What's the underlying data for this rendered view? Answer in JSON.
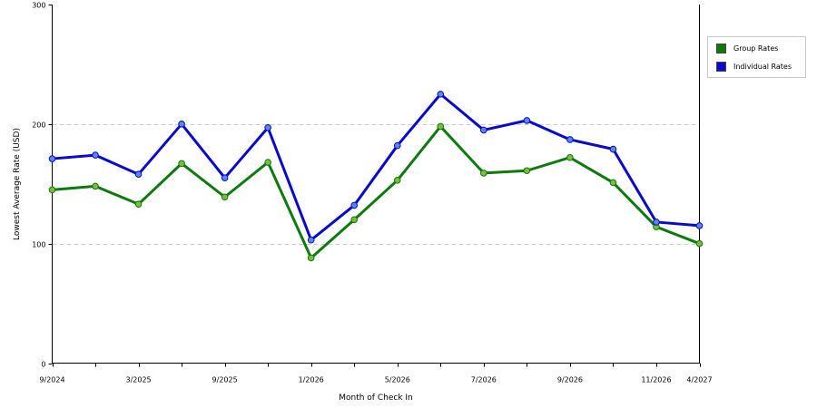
{
  "chart_data": {
    "type": "line",
    "xlabel": "Month of Check In",
    "ylabel": "Lowest Average Rate (USD)",
    "ylim": [
      0,
      300
    ],
    "yticks": [
      0,
      100,
      200,
      300
    ],
    "grid": "horizontal dashed",
    "legend_position": "right",
    "x_tick_labels": [
      {
        "label": "9/2024",
        "index": 0
      },
      {
        "label": "3/2025",
        "index": 2
      },
      {
        "label": "9/2025",
        "index": 4
      },
      {
        "label": "1/2026",
        "index": 6
      },
      {
        "label": "5/2026",
        "index": 8
      },
      {
        "label": "7/2026",
        "index": 10
      },
      {
        "label": "9/2026",
        "index": 12
      },
      {
        "label": "11/2026",
        "index": 14
      },
      {
        "label": "4/2027",
        "index": 15
      }
    ],
    "point_count": 16,
    "series": [
      {
        "name": "Group Rates",
        "color": "#0e7a0d",
        "marker_color": "#7dbb3c",
        "values": [
          145,
          148,
          133,
          167,
          139,
          168,
          88,
          120,
          153,
          198,
          159,
          161,
          172,
          151,
          114,
          100
        ]
      },
      {
        "name": "Individual Rates",
        "color": "#0a0acc",
        "marker_color": "#5a86e8",
        "values": [
          171,
          174,
          158,
          200,
          155,
          197,
          103,
          132,
          182,
          225,
          195,
          203,
          187,
          179,
          118,
          115
        ]
      }
    ]
  }
}
